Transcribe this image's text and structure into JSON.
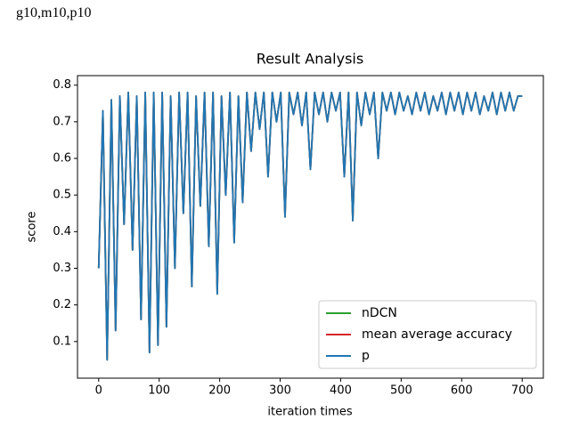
{
  "caption": "g10,m10,p10",
  "chart_data": {
    "type": "line",
    "title": "Result Analysis",
    "xlabel": "iteration times",
    "ylabel": "score",
    "xlim": [
      -35,
      735
    ],
    "ylim": [
      0.0,
      0.826
    ],
    "xticks": [
      0,
      100,
      200,
      300,
      400,
      500,
      600,
      700
    ],
    "yticks": [
      0.1,
      0.2,
      0.3,
      0.4,
      0.5,
      0.6,
      0.7,
      0.8
    ],
    "legend": "lower right",
    "x": [
      0,
      7,
      14,
      21,
      28,
      35,
      42,
      49,
      56,
      63,
      70,
      77,
      84,
      91,
      98,
      105,
      112,
      119,
      126,
      133,
      140,
      147,
      154,
      161,
      168,
      175,
      182,
      189,
      196,
      203,
      210,
      217,
      224,
      231,
      238,
      245,
      252,
      259,
      266,
      273,
      280,
      287,
      294,
      301,
      308,
      315,
      322,
      329,
      336,
      343,
      350,
      357,
      364,
      371,
      378,
      385,
      392,
      399,
      406,
      413,
      420,
      427,
      434,
      441,
      448,
      455,
      462,
      469,
      476,
      483,
      490,
      497,
      504,
      511,
      518,
      525,
      532,
      539,
      546,
      553,
      560,
      567,
      574,
      581,
      588,
      595,
      602,
      609,
      616,
      623,
      630,
      637,
      644,
      651,
      658,
      665,
      672,
      679,
      686,
      693,
      700
    ],
    "series": [
      {
        "name": "nDCN",
        "color": "#2ca02c",
        "values": [
          0.3,
          0.73,
          0.05,
          0.76,
          0.13,
          0.77,
          0.42,
          0.78,
          0.35,
          0.77,
          0.16,
          0.78,
          0.07,
          0.78,
          0.09,
          0.78,
          0.14,
          0.77,
          0.3,
          0.78,
          0.45,
          0.78,
          0.25,
          0.77,
          0.47,
          0.78,
          0.36,
          0.78,
          0.23,
          0.77,
          0.5,
          0.78,
          0.37,
          0.77,
          0.48,
          0.78,
          0.62,
          0.78,
          0.68,
          0.78,
          0.55,
          0.78,
          0.7,
          0.78,
          0.44,
          0.78,
          0.72,
          0.78,
          0.69,
          0.78,
          0.57,
          0.78,
          0.72,
          0.78,
          0.7,
          0.78,
          0.73,
          0.78,
          0.55,
          0.78,
          0.43,
          0.78,
          0.69,
          0.78,
          0.72,
          0.78,
          0.6,
          0.78,
          0.73,
          0.78,
          0.72,
          0.78,
          0.73,
          0.77,
          0.72,
          0.78,
          0.73,
          0.78,
          0.72,
          0.77,
          0.73,
          0.78,
          0.72,
          0.78,
          0.73,
          0.78,
          0.72,
          0.78,
          0.73,
          0.78,
          0.72,
          0.77,
          0.73,
          0.78,
          0.72,
          0.78,
          0.73,
          0.78,
          0.73,
          0.77,
          0.77
        ]
      },
      {
        "name": "mean average accuracy",
        "color": "#d62728",
        "values": [
          0.3,
          0.73,
          0.05,
          0.76,
          0.13,
          0.77,
          0.42,
          0.78,
          0.35,
          0.77,
          0.16,
          0.78,
          0.07,
          0.78,
          0.09,
          0.78,
          0.14,
          0.77,
          0.3,
          0.78,
          0.45,
          0.78,
          0.25,
          0.77,
          0.47,
          0.78,
          0.36,
          0.78,
          0.23,
          0.77,
          0.5,
          0.78,
          0.37,
          0.77,
          0.48,
          0.78,
          0.62,
          0.78,
          0.68,
          0.78,
          0.55,
          0.78,
          0.7,
          0.78,
          0.44,
          0.78,
          0.72,
          0.78,
          0.69,
          0.78,
          0.57,
          0.78,
          0.72,
          0.78,
          0.7,
          0.78,
          0.73,
          0.78,
          0.55,
          0.78,
          0.43,
          0.78,
          0.69,
          0.78,
          0.72,
          0.78,
          0.6,
          0.78,
          0.73,
          0.78,
          0.72,
          0.78,
          0.73,
          0.77,
          0.72,
          0.78,
          0.73,
          0.78,
          0.72,
          0.77,
          0.73,
          0.78,
          0.72,
          0.78,
          0.73,
          0.78,
          0.72,
          0.78,
          0.73,
          0.78,
          0.72,
          0.77,
          0.73,
          0.78,
          0.72,
          0.78,
          0.73,
          0.78,
          0.73,
          0.77,
          0.77
        ]
      },
      {
        "name": "p",
        "color": "#1f77b4",
        "values": [
          0.3,
          0.73,
          0.05,
          0.76,
          0.13,
          0.77,
          0.42,
          0.78,
          0.35,
          0.77,
          0.16,
          0.78,
          0.07,
          0.78,
          0.09,
          0.78,
          0.14,
          0.77,
          0.3,
          0.78,
          0.45,
          0.78,
          0.25,
          0.77,
          0.47,
          0.78,
          0.36,
          0.78,
          0.23,
          0.77,
          0.5,
          0.78,
          0.37,
          0.77,
          0.48,
          0.78,
          0.62,
          0.78,
          0.68,
          0.78,
          0.55,
          0.78,
          0.7,
          0.78,
          0.44,
          0.78,
          0.72,
          0.78,
          0.69,
          0.78,
          0.57,
          0.78,
          0.72,
          0.78,
          0.7,
          0.78,
          0.73,
          0.78,
          0.55,
          0.78,
          0.43,
          0.78,
          0.69,
          0.78,
          0.72,
          0.78,
          0.6,
          0.78,
          0.73,
          0.78,
          0.72,
          0.78,
          0.73,
          0.77,
          0.72,
          0.78,
          0.73,
          0.78,
          0.72,
          0.77,
          0.73,
          0.78,
          0.72,
          0.78,
          0.73,
          0.78,
          0.72,
          0.78,
          0.73,
          0.78,
          0.72,
          0.77,
          0.73,
          0.78,
          0.72,
          0.78,
          0.73,
          0.78,
          0.73,
          0.77,
          0.77
        ]
      }
    ]
  }
}
